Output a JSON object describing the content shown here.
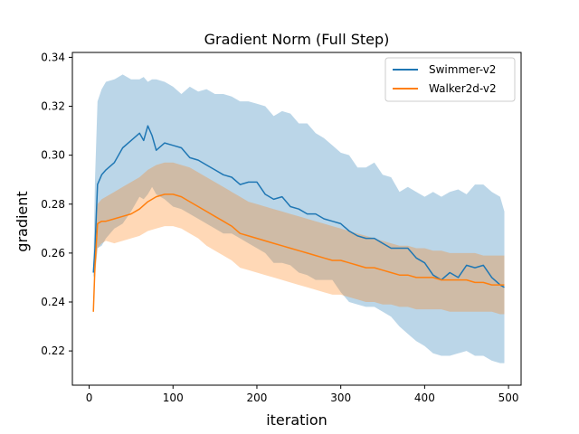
{
  "chart_data": {
    "type": "line",
    "title": "Gradient Norm (Full Step)",
    "xlabel": "iteration",
    "ylabel": "gradient",
    "xlim": [
      -20,
      515
    ],
    "ylim": [
      0.206,
      0.342
    ],
    "xticks": [
      0,
      100,
      200,
      300,
      400,
      500
    ],
    "yticks": [
      0.22,
      0.24,
      0.26,
      0.28,
      0.3,
      0.32,
      0.34
    ],
    "grid": false,
    "legend": "top-right",
    "series": [
      {
        "name": "Swimmer-v2",
        "color": "#1f77b4",
        "x": [
          5,
          7,
          10,
          15,
          20,
          30,
          40,
          50,
          60,
          65,
          70,
          75,
          80,
          90,
          100,
          110,
          120,
          130,
          140,
          150,
          160,
          170,
          180,
          190,
          200,
          210,
          220,
          230,
          240,
          250,
          260,
          270,
          280,
          290,
          300,
          310,
          320,
          330,
          340,
          350,
          360,
          370,
          380,
          390,
          400,
          410,
          420,
          430,
          440,
          450,
          460,
          470,
          480,
          490,
          495
        ],
        "y": [
          0.252,
          0.262,
          0.288,
          0.292,
          0.294,
          0.297,
          0.303,
          0.306,
          0.309,
          0.306,
          0.312,
          0.308,
          0.302,
          0.305,
          0.304,
          0.303,
          0.299,
          0.298,
          0.296,
          0.294,
          0.292,
          0.291,
          0.288,
          0.289,
          0.289,
          0.284,
          0.282,
          0.283,
          0.279,
          0.278,
          0.276,
          0.276,
          0.274,
          0.273,
          0.272,
          0.269,
          0.267,
          0.266,
          0.266,
          0.264,
          0.262,
          0.262,
          0.262,
          0.258,
          0.256,
          0.251,
          0.249,
          0.252,
          0.25,
          0.255,
          0.254,
          0.255,
          0.25,
          0.247,
          0.246
        ],
        "band_upper": [
          0.254,
          0.29,
          0.322,
          0.327,
          0.33,
          0.331,
          0.333,
          0.331,
          0.331,
          0.332,
          0.33,
          0.331,
          0.331,
          0.33,
          0.328,
          0.325,
          0.328,
          0.326,
          0.327,
          0.325,
          0.325,
          0.324,
          0.322,
          0.322,
          0.321,
          0.32,
          0.316,
          0.318,
          0.317,
          0.313,
          0.313,
          0.309,
          0.307,
          0.304,
          0.301,
          0.3,
          0.295,
          0.295,
          0.297,
          0.292,
          0.291,
          0.285,
          0.287,
          0.285,
          0.283,
          0.285,
          0.283,
          0.285,
          0.286,
          0.284,
          0.288,
          0.288,
          0.285,
          0.283,
          0.277
        ],
        "band_lower": [
          0.25,
          0.252,
          0.262,
          0.263,
          0.266,
          0.27,
          0.272,
          0.277,
          0.283,
          0.282,
          0.284,
          0.287,
          0.284,
          0.282,
          0.279,
          0.278,
          0.276,
          0.274,
          0.272,
          0.27,
          0.268,
          0.268,
          0.266,
          0.264,
          0.262,
          0.26,
          0.256,
          0.256,
          0.255,
          0.252,
          0.251,
          0.249,
          0.249,
          0.249,
          0.244,
          0.24,
          0.239,
          0.238,
          0.238,
          0.236,
          0.234,
          0.23,
          0.227,
          0.224,
          0.222,
          0.219,
          0.218,
          0.218,
          0.219,
          0.22,
          0.218,
          0.218,
          0.216,
          0.215,
          0.215
        ]
      },
      {
        "name": "Walker2d-v2",
        "color": "#ff7f0e",
        "x": [
          5,
          7,
          10,
          15,
          20,
          30,
          40,
          50,
          60,
          70,
          80,
          90,
          100,
          110,
          120,
          130,
          140,
          150,
          160,
          170,
          180,
          190,
          200,
          210,
          220,
          230,
          240,
          250,
          260,
          270,
          280,
          290,
          300,
          310,
          320,
          330,
          340,
          350,
          360,
          370,
          380,
          390,
          400,
          410,
          420,
          430,
          440,
          450,
          460,
          470,
          480,
          490,
          495
        ],
        "y": [
          0.236,
          0.255,
          0.272,
          0.273,
          0.273,
          0.274,
          0.275,
          0.276,
          0.278,
          0.281,
          0.283,
          0.284,
          0.284,
          0.283,
          0.281,
          0.279,
          0.277,
          0.275,
          0.273,
          0.271,
          0.268,
          0.267,
          0.266,
          0.265,
          0.264,
          0.263,
          0.262,
          0.261,
          0.26,
          0.259,
          0.258,
          0.257,
          0.257,
          0.256,
          0.255,
          0.254,
          0.254,
          0.253,
          0.252,
          0.251,
          0.251,
          0.25,
          0.25,
          0.25,
          0.249,
          0.249,
          0.249,
          0.249,
          0.248,
          0.248,
          0.247,
          0.247,
          0.247
        ],
        "band_upper": [
          0.237,
          0.262,
          0.28,
          0.282,
          0.283,
          0.285,
          0.287,
          0.289,
          0.291,
          0.294,
          0.296,
          0.297,
          0.297,
          0.296,
          0.295,
          0.293,
          0.291,
          0.289,
          0.287,
          0.285,
          0.283,
          0.281,
          0.28,
          0.279,
          0.278,
          0.277,
          0.276,
          0.275,
          0.274,
          0.273,
          0.272,
          0.271,
          0.27,
          0.269,
          0.268,
          0.267,
          0.266,
          0.265,
          0.264,
          0.263,
          0.263,
          0.262,
          0.262,
          0.261,
          0.261,
          0.26,
          0.26,
          0.26,
          0.26,
          0.259,
          0.259,
          0.259,
          0.259
        ],
        "band_lower": [
          0.235,
          0.25,
          0.262,
          0.264,
          0.265,
          0.264,
          0.265,
          0.266,
          0.267,
          0.269,
          0.27,
          0.271,
          0.271,
          0.27,
          0.268,
          0.266,
          0.263,
          0.261,
          0.259,
          0.257,
          0.254,
          0.253,
          0.252,
          0.251,
          0.25,
          0.249,
          0.248,
          0.247,
          0.246,
          0.245,
          0.244,
          0.243,
          0.243,
          0.242,
          0.241,
          0.24,
          0.24,
          0.239,
          0.239,
          0.238,
          0.238,
          0.237,
          0.237,
          0.237,
          0.237,
          0.236,
          0.236,
          0.236,
          0.236,
          0.236,
          0.236,
          0.235,
          0.235
        ]
      }
    ]
  }
}
